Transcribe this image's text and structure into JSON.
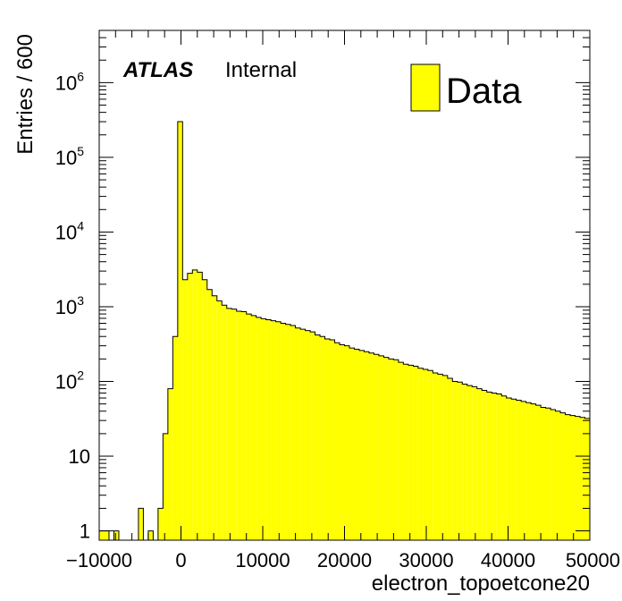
{
  "chart_data": {
    "type": "bar",
    "subtype": "histogram",
    "xlabel": "electron_topoetcone20",
    "ylabel": "Entries / 600",
    "xlim": [
      -10000,
      50000
    ],
    "ylim": [
      0.75,
      5000000
    ],
    "yscale": "log",
    "grid": false,
    "legend_position": "top-right",
    "bin_width": 600,
    "fill_color": "#ffff00",
    "line_color": "#000000",
    "label_text": {
      "experiment": "ATLAS",
      "status": "Internal"
    },
    "x_ticks": [
      -10000,
      0,
      10000,
      20000,
      30000,
      40000,
      50000
    ],
    "x_tick_labels": [
      "−10000",
      "0",
      "10000",
      "20000",
      "30000",
      "40000",
      "50000"
    ],
    "y_ticks": [
      {
        "value": 1,
        "base": "1",
        "exp": ""
      },
      {
        "value": 10,
        "base": "10",
        "exp": ""
      },
      {
        "value": 100,
        "base": "10",
        "exp": "2"
      },
      {
        "value": 1000,
        "base": "10",
        "exp": "3"
      },
      {
        "value": 10000,
        "base": "10",
        "exp": "4"
      },
      {
        "value": 100000,
        "base": "10",
        "exp": "5"
      },
      {
        "value": 1000000,
        "base": "10",
        "exp": "6"
      }
    ],
    "series": [
      {
        "name": "Data",
        "bin_low_edges": [
          -10000,
          -9400,
          -8800,
          -8200,
          -7600,
          -7000,
          -6400,
          -5800,
          -5200,
          -4600,
          -4000,
          -3400,
          -2800,
          -2200,
          -1600,
          -1000,
          -400,
          200,
          800,
          1400,
          2000,
          2600,
          3200,
          3800,
          4400,
          5000,
          5600,
          6200,
          6800,
          7400,
          8000,
          8600,
          9200,
          9800,
          10400,
          11000,
          11600,
          12200,
          12800,
          13400,
          14000,
          14600,
          15200,
          15800,
          16400,
          17000,
          17600,
          18200,
          18800,
          19400,
          20000,
          20600,
          21200,
          21800,
          22400,
          23000,
          23600,
          24200,
          24800,
          25400,
          26000,
          26600,
          27200,
          27800,
          28400,
          29000,
          29600,
          30200,
          30800,
          31400,
          32000,
          32600,
          33200,
          33800,
          34400,
          35000,
          35600,
          36200,
          36800,
          37400,
          38000,
          38600,
          39200,
          39800,
          40400,
          41000,
          41600,
          42200,
          42800,
          43400,
          44000,
          44600,
          45200,
          45800,
          46400,
          47000,
          47600,
          48200,
          48800,
          49400
        ],
        "values": [
          1,
          1,
          0,
          1,
          0,
          0,
          0,
          0,
          2,
          0,
          1,
          0,
          2,
          20,
          80,
          400,
          300000,
          2300,
          2800,
          3100,
          2900,
          2300,
          1700,
          1400,
          1200,
          1050,
          950,
          930,
          870,
          860,
          800,
          760,
          720,
          690,
          670,
          650,
          630,
          600,
          580,
          560,
          520,
          500,
          480,
          460,
          420,
          400,
          370,
          360,
          330,
          310,
          300,
          280,
          270,
          260,
          250,
          240,
          230,
          220,
          210,
          200,
          195,
          180,
          170,
          165,
          160,
          150,
          145,
          140,
          130,
          125,
          120,
          110,
          100,
          98,
          92,
          88,
          85,
          80,
          76,
          72,
          70,
          68,
          64,
          60,
          58,
          56,
          54,
          52,
          50,
          48,
          45,
          44,
          42,
          40,
          38,
          36,
          35,
          34,
          33,
          32
        ]
      }
    ]
  }
}
